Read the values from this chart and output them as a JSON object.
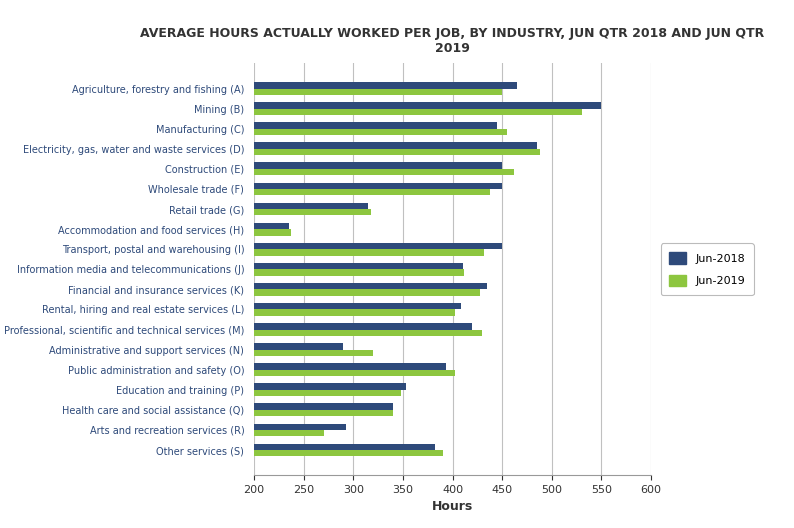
{
  "title": "AVERAGE HOURS ACTUALLY WORKED PER JOB, BY INDUSTRY, JUN QTR 2018 AND JUN QTR\n2019",
  "categories": [
    "Agriculture, forestry and fishing (A)",
    "Mining (B)",
    "Manufacturing (C)",
    "Electricity, gas, water and waste services (D)",
    "Construction (E)",
    "Wholesale trade (F)",
    "Retail trade (G)",
    "Accommodation and food services (H)",
    "Transport, postal and warehousing (I)",
    "Information media and telecommunications (J)",
    "Financial and insurance services (K)",
    "Rental, hiring and real estate services (L)",
    "Professional, scientific and technical services (M)",
    "Administrative and support services (N)",
    "Public administration and safety (O)",
    "Education and training (P)",
    "Health care and social assistance (Q)",
    "Arts and recreation services (R)",
    "Other services (S)"
  ],
  "jun2018": [
    465,
    550,
    445,
    485,
    450,
    450,
    315,
    235,
    450,
    410,
    435,
    408,
    420,
    290,
    393,
    353,
    340,
    293,
    382
  ],
  "jun2019": [
    450,
    530,
    455,
    488,
    462,
    438,
    318,
    237,
    432,
    412,
    428,
    402,
    430,
    320,
    402,
    348,
    340,
    270,
    390
  ],
  "color_2018": "#2E4A7A",
  "color_2019": "#8DC63F",
  "xlabel": "Hours",
  "xlim": [
    200,
    600
  ],
  "xticks": [
    200,
    250,
    300,
    350,
    400,
    450,
    500,
    550,
    600
  ],
  "legend_2018": "Jun-2018",
  "legend_2019": "Jun-2019",
  "background_color": "#FFFFFF",
  "grid_color": "#C0C0C0"
}
